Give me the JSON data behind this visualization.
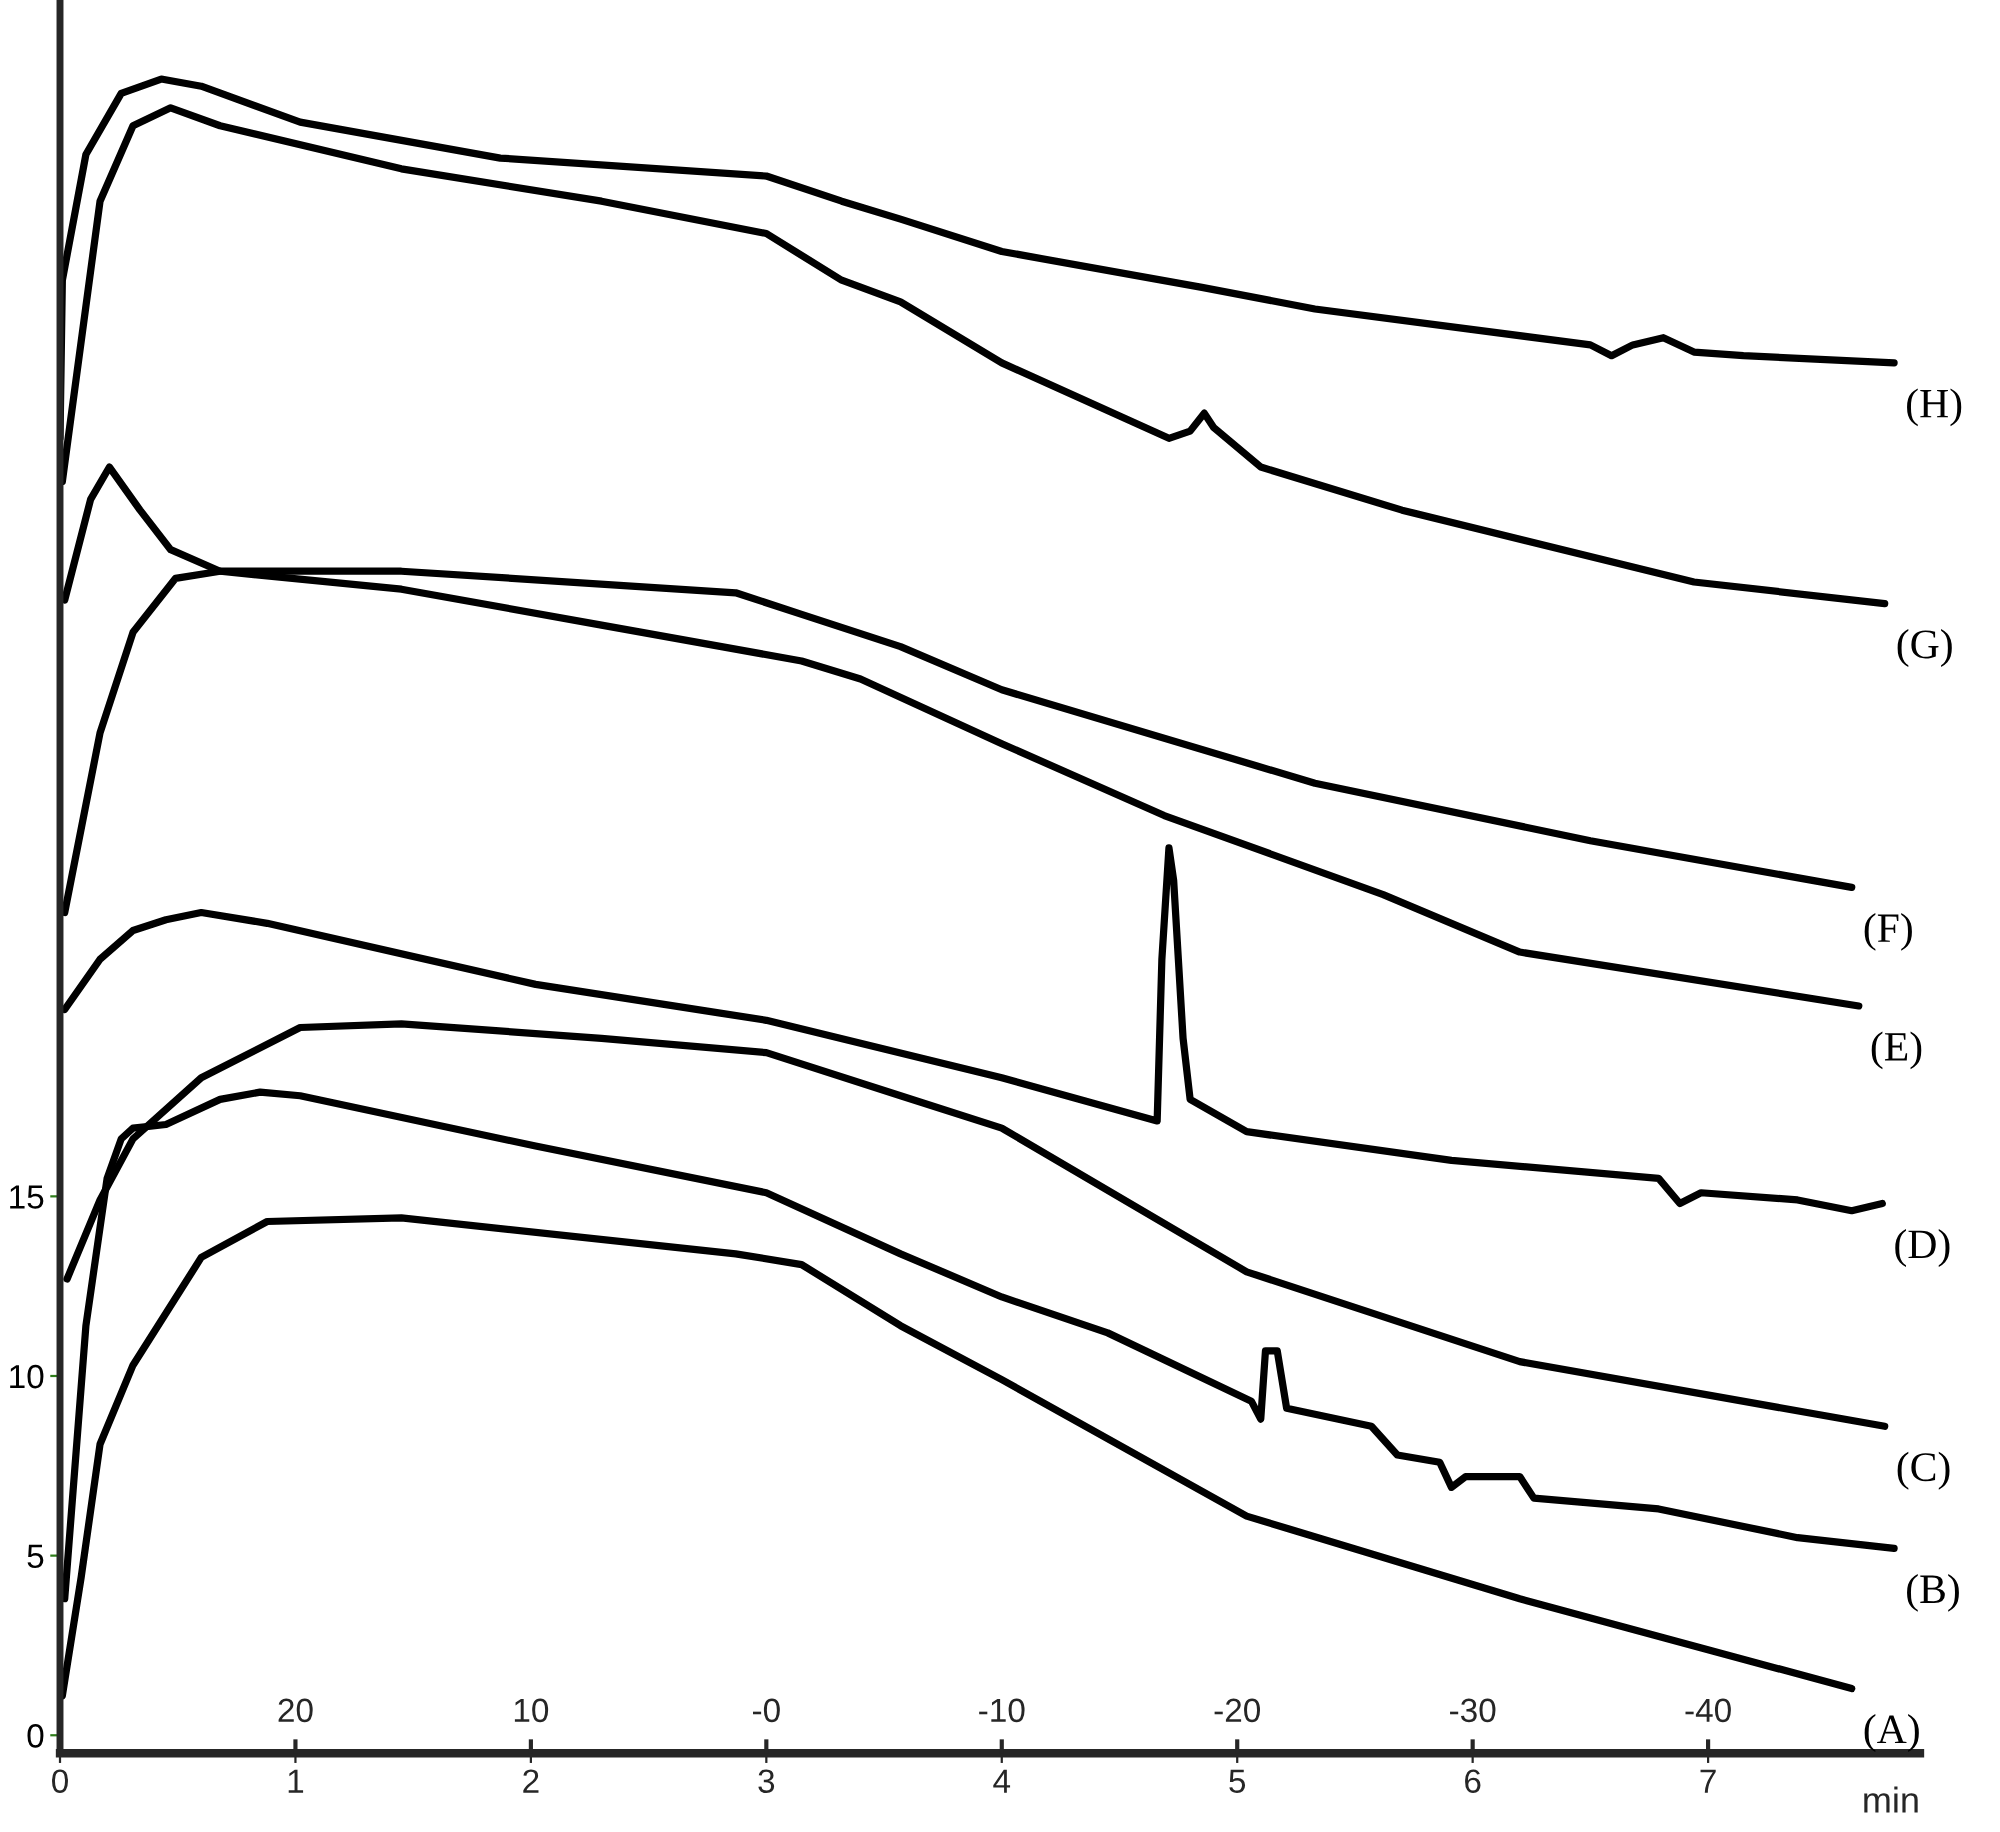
{
  "chart_data": {
    "type": "line",
    "xlabel": "min",
    "xlim": [
      0,
      7.9
    ],
    "xticks": [
      0,
      1,
      2,
      3,
      4,
      5,
      6,
      7
    ],
    "ylim": [
      -0.5,
      48.3
    ],
    "yticks": [
      0,
      5,
      10,
      15
    ],
    "x2lim": [
      30,
      -49
    ],
    "x2ticks": [
      20,
      10,
      {
        "value": 0,
        "label": "-0"
      },
      -10,
      -20,
      -30,
      -40
    ],
    "grid": false,
    "legend": false,
    "marker": "none",
    "line_style": "solid",
    "series": [
      {
        "name": "(A)",
        "color": "#000000",
        "x": [
          0.01,
          0.09,
          0.17,
          0.31,
          0.6,
          0.88,
          1.45,
          2.87,
          3.15,
          3.57,
          4.0,
          5.04,
          6.2,
          7.61
        ],
        "values": [
          1.1,
          4.4,
          8.1,
          10.3,
          13.3,
          14.3,
          14.4,
          13.4,
          13.1,
          11.4,
          9.9,
          6.1,
          3.8,
          1.3
        ]
      },
      {
        "name": "(B)",
        "color": "#000000",
        "x": [
          0.02,
          0.11,
          0.2,
          0.26,
          0.31,
          0.45,
          0.68,
          0.85,
          1.02,
          2.02,
          3.0,
          3.57,
          4.0,
          4.45,
          5.06,
          5.1,
          5.12,
          5.17,
          5.21,
          5.57,
          5.68,
          5.86,
          5.91,
          5.97,
          6.2,
          6.26,
          6.79,
          7.38,
          7.79
        ],
        "values": [
          3.8,
          11.4,
          15.5,
          16.6,
          16.9,
          17.0,
          17.7,
          17.9,
          17.8,
          16.4,
          15.1,
          13.4,
          12.2,
          11.2,
          9.3,
          8.8,
          10.7,
          10.7,
          9.1,
          8.6,
          7.8,
          7.6,
          6.9,
          7.2,
          7.2,
          6.6,
          6.3,
          5.5,
          5.2
        ]
      },
      {
        "name": "(C)",
        "color": "#000000",
        "x": [
          0.03,
          0.17,
          0.31,
          0.6,
          1.02,
          1.45,
          2.3,
          3.0,
          3.57,
          4.0,
          5.04,
          6.2,
          7.75
        ],
        "values": [
          12.7,
          14.9,
          16.6,
          18.3,
          19.7,
          19.8,
          19.4,
          19.0,
          17.8,
          16.9,
          12.9,
          10.4,
          8.6
        ]
      },
      {
        "name": "(D)",
        "color": "#000000",
        "x": [
          0.02,
          0.17,
          0.31,
          0.45,
          0.6,
          0.88,
          2.02,
          3.0,
          4.0,
          4.66,
          4.68,
          4.71,
          4.73,
          4.77,
          4.8,
          5.04,
          5.91,
          6.79,
          6.88,
          6.97,
          7.38,
          7.61,
          7.74
        ],
        "values": [
          20.2,
          21.6,
          22.4,
          22.7,
          22.9,
          22.6,
          20.9,
          19.9,
          18.3,
          17.1,
          21.6,
          24.7,
          23.8,
          19.4,
          17.7,
          16.8,
          16.0,
          15.5,
          14.8,
          15.1,
          14.9,
          14.6,
          14.8
        ]
      },
      {
        "name": "(E)",
        "color": "#000000",
        "x": [
          0.02,
          0.13,
          0.21,
          0.34,
          0.47,
          0.68,
          1.45,
          2.3,
          3.15,
          3.4,
          4.0,
          4.69,
          5.62,
          6.2,
          7.64
        ],
        "values": [
          31.6,
          34.4,
          35.3,
          34.1,
          33.0,
          32.4,
          31.9,
          30.9,
          29.9,
          29.4,
          27.6,
          25.6,
          23.4,
          21.8,
          20.3
        ]
      },
      {
        "name": "(F)",
        "color": "#000000",
        "x": [
          0.02,
          0.17,
          0.31,
          0.49,
          0.68,
          1.45,
          2.87,
          3.15,
          3.57,
          4.0,
          5.33,
          6.5,
          7.61
        ],
        "values": [
          22.9,
          27.9,
          30.7,
          32.2,
          32.4,
          32.4,
          31.8,
          31.2,
          30.3,
          29.1,
          26.5,
          24.9,
          23.6
        ]
      },
      {
        "name": "(G)",
        "color": "#000000",
        "x": [
          0.01,
          0.17,
          0.31,
          0.47,
          0.68,
          1.45,
          2.3,
          3.0,
          3.32,
          3.57,
          4.0,
          4.71,
          4.8,
          4.86,
          4.9,
          5.1,
          5.7,
          6.94,
          7.75
        ],
        "values": [
          34.9,
          42.7,
          44.8,
          45.3,
          44.8,
          43.6,
          42.7,
          41.8,
          40.5,
          39.9,
          38.2,
          36.1,
          36.3,
          36.8,
          36.4,
          35.3,
          34.1,
          32.1,
          31.5
        ]
      },
      {
        "name": "(H)",
        "color": "#000000",
        "x": [
          0.0,
          0.01,
          0.11,
          0.26,
          0.43,
          0.6,
          1.02,
          1.87,
          3.0,
          3.32,
          3.57,
          4.0,
          4.85,
          5.33,
          6.5,
          6.59,
          6.68,
          6.81,
          6.94,
          7.15,
          7.79
        ],
        "values": [
          36.1,
          40.5,
          44.0,
          45.7,
          46.1,
          45.9,
          44.9,
          43.9,
          43.4,
          42.7,
          42.2,
          41.3,
          40.3,
          39.7,
          38.7,
          38.4,
          38.7,
          38.9,
          38.5,
          38.4,
          38.2
        ]
      }
    ]
  }
}
